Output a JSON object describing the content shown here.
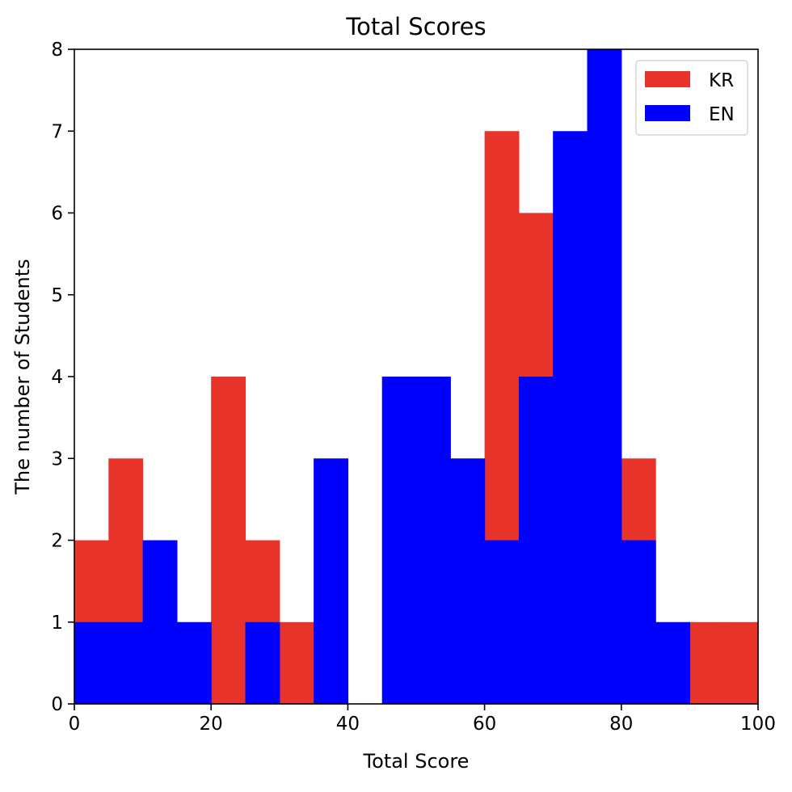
{
  "chart_data": {
    "type": "bar",
    "title": "Total Scores",
    "xlabel": "Total Score",
    "ylabel": "The number of Students",
    "xlim": [
      0,
      100
    ],
    "ylim": [
      0,
      8
    ],
    "xticks": [
      "0",
      "20",
      "40",
      "60",
      "80",
      "100"
    ],
    "yticks": [
      "0",
      "1",
      "2",
      "3",
      "4",
      "5",
      "6",
      "7",
      "8"
    ],
    "bin_edges": [
      0,
      5,
      10,
      15,
      20,
      25,
      30,
      35,
      40,
      45,
      50,
      55,
      60,
      65,
      70,
      75,
      80,
      85,
      90,
      95,
      100
    ],
    "series": [
      {
        "name": "KR",
        "color": "#e8332a",
        "values": [
          2,
          3,
          0,
          0,
          4,
          2,
          1,
          0,
          0,
          0,
          0,
          0,
          7,
          6,
          0,
          0,
          3,
          0,
          1,
          1
        ]
      },
      {
        "name": "EN",
        "color": "#0000ff",
        "values": [
          1,
          1,
          2,
          1,
          0,
          1,
          0,
          3,
          0,
          4,
          4,
          3,
          2,
          4,
          7,
          8,
          2,
          1,
          0,
          0
        ]
      }
    ],
    "legend": {
      "position": "top-right"
    },
    "grid": false
  }
}
